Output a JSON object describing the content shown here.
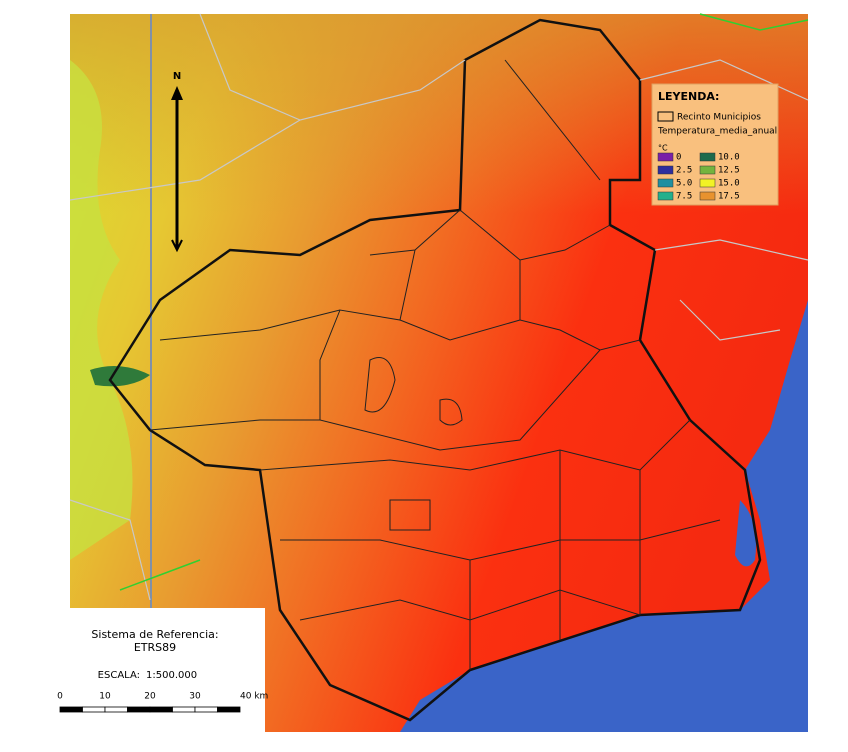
{
  "legend": {
    "title": "LEYENDA:",
    "layer": "Recinto Municipios",
    "raster": "Temperatura_media_anual",
    "unit": "°C",
    "entries": [
      {
        "label": "0",
        "color": "#7a1fa8"
      },
      {
        "label": "2.5",
        "color": "#2e2e9e"
      },
      {
        "label": "5.0",
        "color": "#1f8fa0"
      },
      {
        "label": "7.5",
        "color": "#22b08c"
      },
      {
        "label": "10.0",
        "color": "#1e6a4c"
      },
      {
        "label": "12.5",
        "color": "#74b43e"
      },
      {
        "label": "15.0",
        "color": "#f2f226"
      },
      {
        "label": "17.5",
        "color": "#e8922e"
      }
    ]
  },
  "north": "N",
  "reference": {
    "title": "Sistema de Referencia:",
    "system": "ETRS89"
  },
  "scale": {
    "label": "ESCALA:",
    "ratio": "1:500.000",
    "ticks": [
      "0",
      "10",
      "20",
      "30",
      "40 km"
    ]
  }
}
